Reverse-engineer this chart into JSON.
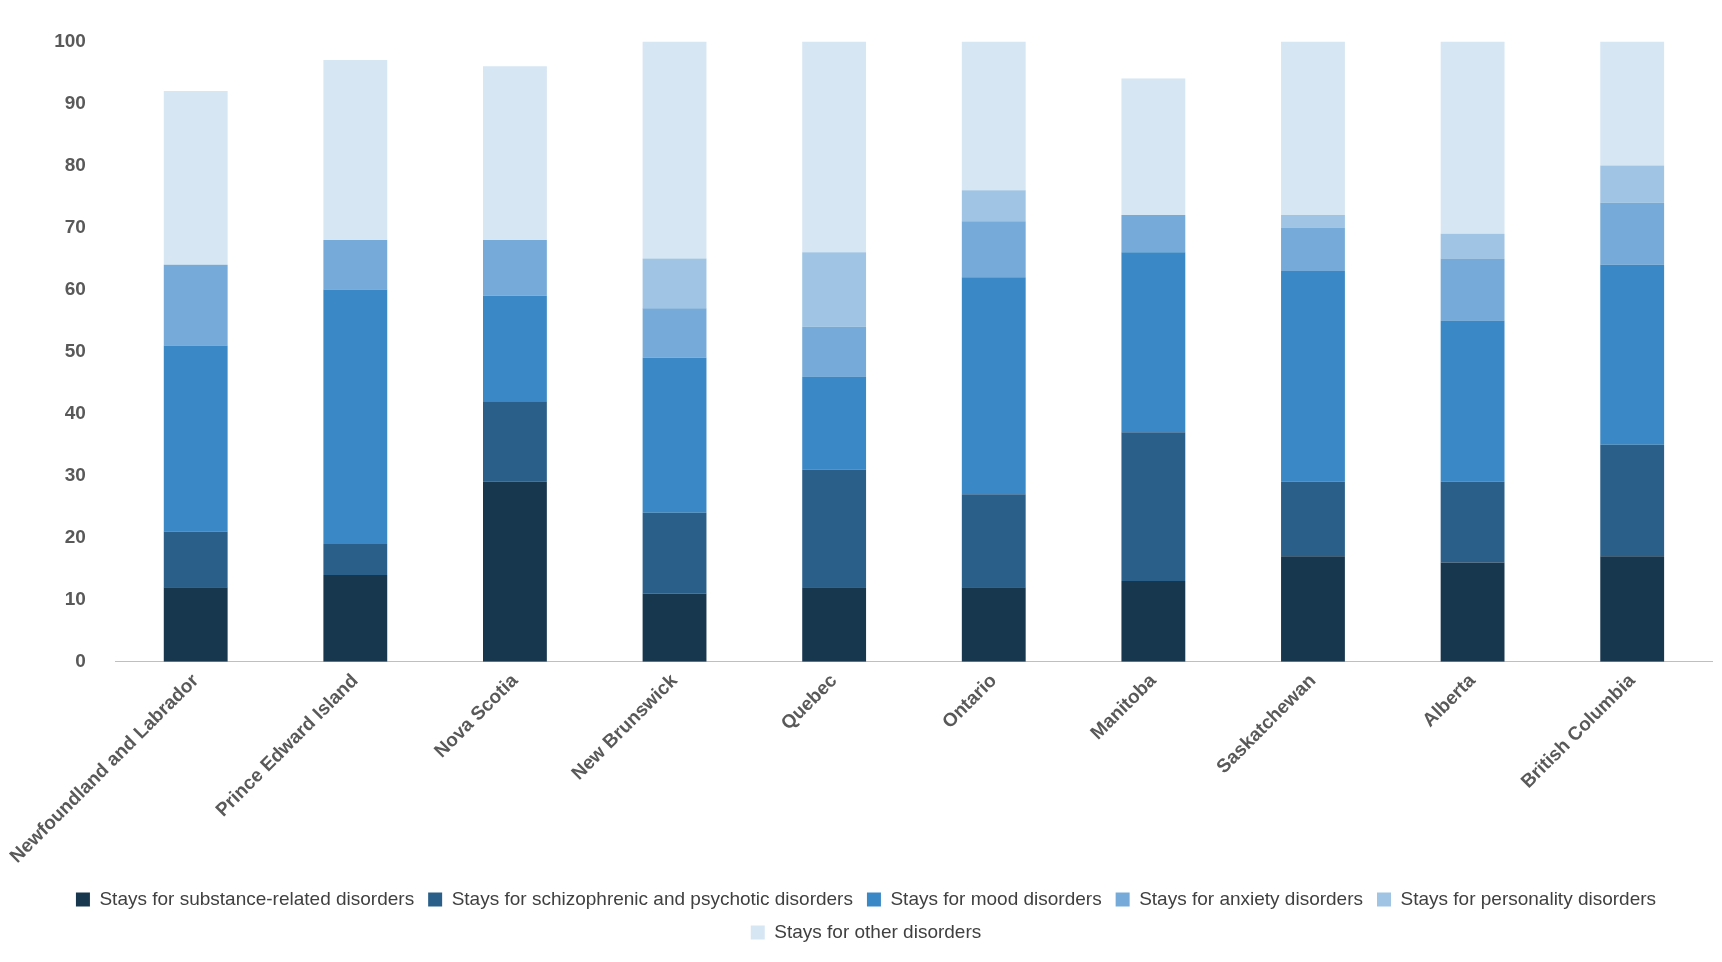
{
  "chart_data": {
    "type": "bar",
    "stacked": true,
    "categories": [
      "Newfoundland and Labrador",
      "Prince Edward Island",
      "Nova Scotia",
      "New Brunswick",
      "Quebec",
      "Ontario",
      "Manitoba",
      "Saskatchewan",
      "Alberta",
      "British Columbia"
    ],
    "series": [
      {
        "name": "Stays for substance-related disorders",
        "color": "#17374f",
        "values": [
          12,
          14,
          29,
          11,
          12,
          12,
          13,
          17,
          16,
          17
        ]
      },
      {
        "name": "Stays for schizophrenic and psychotic disorders",
        "color": "#2a5f8a",
        "values": [
          9,
          5,
          13,
          13,
          19,
          15,
          24,
          12,
          13,
          18
        ]
      },
      {
        "name": "Stays for mood disorders",
        "color": "#3a88c5",
        "values": [
          30,
          41,
          17,
          25,
          15,
          35,
          29,
          34,
          26,
          29
        ]
      },
      {
        "name": "Stays for anxiety disorders",
        "color": "#76aad8",
        "values": [
          13,
          8,
          9,
          8,
          8,
          9,
          6,
          7,
          10,
          10
        ]
      },
      {
        "name": "Stays for personality disorders",
        "color": "#9fc4e4",
        "values": [
          0,
          0,
          0,
          8,
          12,
          5,
          0,
          2,
          4,
          6
        ]
      },
      {
        "name": "Stays for other disorders",
        "color": "#d6e6f3",
        "values": [
          28,
          29,
          28,
          35,
          34,
          24,
          22,
          28,
          31,
          20
        ]
      }
    ],
    "ylim": [
      0,
      100
    ],
    "yticks": [
      0,
      10,
      20,
      30,
      40,
      50,
      60,
      70,
      80,
      90,
      100
    ],
    "grid": false,
    "legend": "bottom"
  }
}
